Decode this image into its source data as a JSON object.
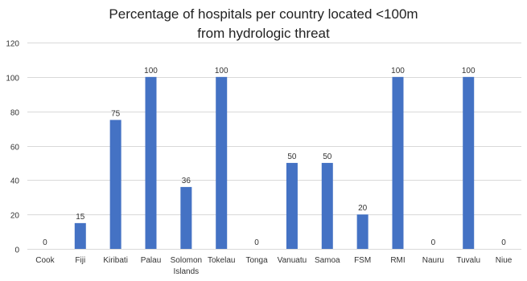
{
  "chart_data": {
    "type": "bar",
    "title_lines": [
      "Percentage of hospitals per country located <100m",
      "from hydrologic threat"
    ],
    "categories": [
      [
        "Cook"
      ],
      [
        "Fiji"
      ],
      [
        "Kiribati"
      ],
      [
        "Palau"
      ],
      [
        "Solomon",
        "Islands"
      ],
      [
        "Tokelau"
      ],
      [
        "Tonga"
      ],
      [
        "Vanuatu"
      ],
      [
        "Samoa"
      ],
      [
        "FSM"
      ],
      [
        "RMI"
      ],
      [
        "Nauru"
      ],
      [
        "Tuvalu"
      ],
      [
        "Niue"
      ]
    ],
    "values": [
      0,
      15,
      75,
      100,
      36,
      100,
      0,
      50,
      50,
      20,
      100,
      0,
      100,
      0
    ],
    "data_labels": [
      "0",
      "15",
      "75",
      "100",
      "36",
      "100",
      "0",
      "50",
      "50",
      "20",
      "100",
      "0",
      "100",
      "0"
    ],
    "ylim": [
      0,
      120
    ],
    "yticks": [
      0,
      20,
      40,
      60,
      80,
      100,
      120
    ],
    "ytick_labels": [
      "0",
      "20",
      "40",
      "60",
      "80",
      "100",
      "120"
    ],
    "xlabel": "",
    "ylabel": "",
    "grid": true,
    "legend": "none",
    "bar_color": "#4472C4",
    "grid_color": "#D9D9D9",
    "text_color": "#333333"
  }
}
